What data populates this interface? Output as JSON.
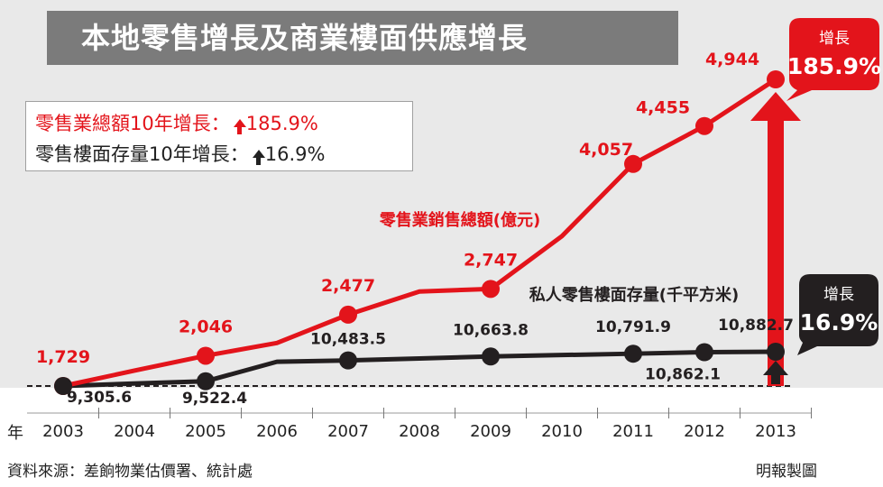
{
  "title": "本地零售增長及商業樓面供應增長",
  "legend": {
    "red_label": "零售業總額10年增長：",
    "red_value": "185.9%",
    "black_label": "零售樓面存量10年增長：",
    "black_value": "16.9%"
  },
  "colors": {
    "red": "#e3141b",
    "black": "#231f20",
    "banner": "#7b7b7b",
    "background": "#e9e9e9"
  },
  "x_prefix": "年",
  "source": "資料來源：差餉物業估價署、統計處",
  "credit": "明報製圖",
  "chart_data": {
    "type": "line",
    "categories": [
      "2003",
      "2004",
      "2005",
      "2006",
      "2007",
      "2008",
      "2009",
      "2010",
      "2011",
      "2012",
      "2013"
    ],
    "series": [
      {
        "name": "零售業銷售總額(億元)",
        "color": "#e3141b",
        "values": [
          1729,
          1890,
          2046,
          2180,
          2477,
          2720,
          2747,
          3300,
          4057,
          4455,
          4944
        ],
        "labels": [
          "1,729",
          "",
          "2,046",
          "",
          "2,477",
          "",
          "2,747",
          "",
          "4,057",
          "4,455",
          "4,944"
        ],
        "markers": [
          true,
          false,
          true,
          false,
          true,
          false,
          true,
          false,
          true,
          true,
          true
        ]
      },
      {
        "name": "私人零售樓面存量(千平方米)",
        "color": "#231f20",
        "values": [
          9305.6,
          9420,
          9522.4,
          10420,
          10483.5,
          10570,
          10663.8,
          10730,
          10791.9,
          10862.1,
          10882.7
        ],
        "labels": [
          "9,305.6",
          "",
          "9,522.4",
          "",
          "10,483.5",
          "",
          "10,663.8",
          "",
          "10,791.9",
          "10,862.1",
          "10,882.7"
        ],
        "markers": [
          true,
          false,
          true,
          false,
          true,
          false,
          true,
          false,
          true,
          true,
          true
        ]
      }
    ],
    "growth_callouts": [
      {
        "label": "增長",
        "value": "185.9%",
        "color": "#e3141b"
      },
      {
        "label": "增長",
        "value": "16.9%",
        "color": "#231f20"
      }
    ]
  }
}
